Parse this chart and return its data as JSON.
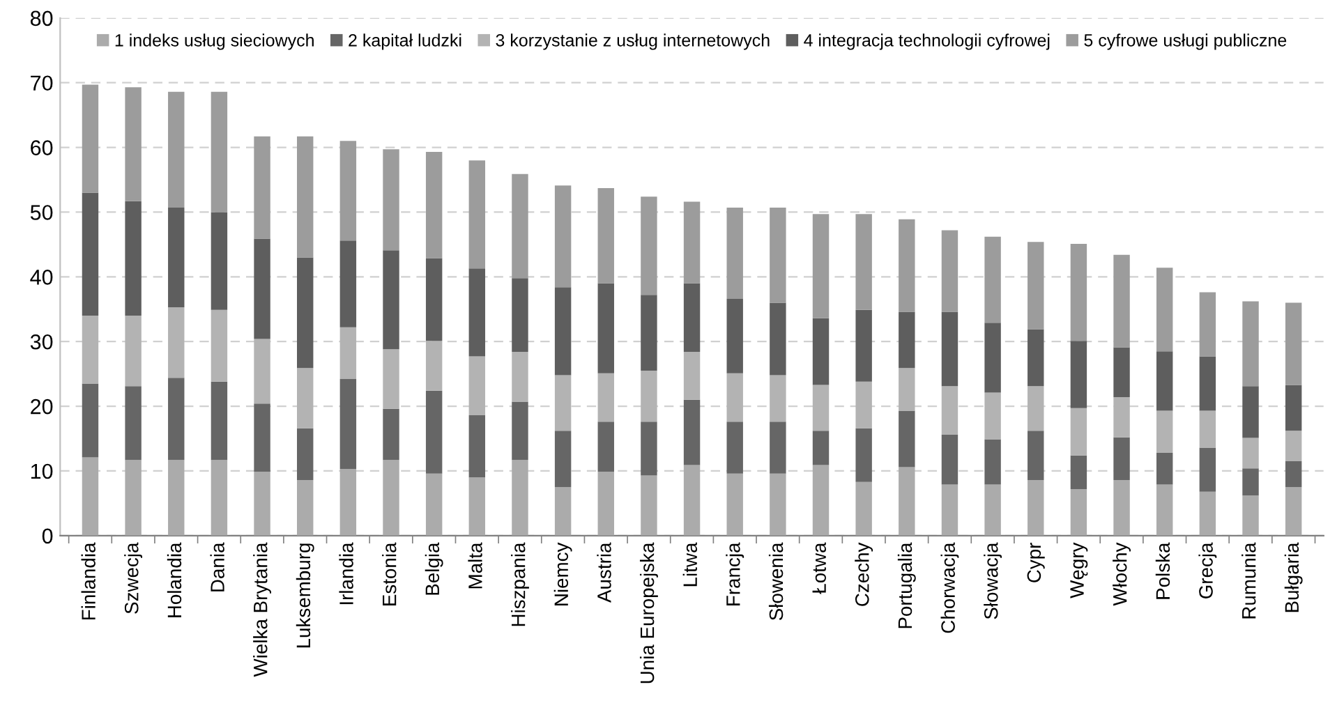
{
  "chart_data": {
    "type": "bar",
    "stacked": true,
    "categories": [
      "Finlandia",
      "Szwecja",
      "Holandia",
      "Dania",
      "Wielka Brytania",
      "Luksemburg",
      "Irlandia",
      "Estonia",
      "Belgia",
      "Malta",
      "Hiszpania",
      "Niemcy",
      "Austria",
      "Unia Europejska",
      "Litwa",
      "Francja",
      "Słowenia",
      "Łotwa",
      "Czechy",
      "Portugalia",
      "Chorwacja",
      "Słowacja",
      "Cypr",
      "Węgry",
      "Włochy",
      "Polska",
      "Grecja",
      "Rumunia",
      "Bułgaria"
    ],
    "series": [
      {
        "name": "1 indeks usług sieciowych",
        "color": "#ababab",
        "values": [
          12.1,
          11.7,
          11.7,
          11.7,
          9.9,
          8.6,
          10.3,
          11.7,
          9.6,
          9.0,
          11.7,
          7.5,
          9.9,
          9.3,
          10.9,
          9.6,
          9.6,
          10.9,
          8.3,
          10.6,
          7.9,
          7.9,
          8.6,
          7.2,
          8.6,
          7.9,
          6.8,
          6.2,
          7.5
        ]
      },
      {
        "name": "2 kapitał ludzki",
        "color": "#666666",
        "values": [
          11.4,
          11.4,
          12.7,
          12.1,
          10.5,
          8.0,
          13.9,
          7.9,
          12.8,
          9.6,
          9.0,
          8.7,
          7.7,
          8.3,
          10.1,
          8.0,
          8.0,
          5.3,
          8.3,
          8.7,
          7.7,
          7.0,
          7.6,
          5.2,
          6.6,
          4.9,
          6.8,
          4.2,
          4.0
        ]
      },
      {
        "name": "3 korzystanie z usług internetowych",
        "color": "#b3b3b3",
        "values": [
          10.5,
          10.9,
          10.9,
          11.1,
          10.0,
          9.3,
          8.0,
          9.2,
          7.7,
          9.1,
          7.7,
          8.6,
          7.5,
          7.9,
          7.4,
          7.5,
          7.2,
          7.1,
          7.2,
          6.6,
          7.5,
          7.2,
          6.9,
          7.3,
          6.2,
          6.5,
          5.7,
          4.7,
          4.7
        ]
      },
      {
        "name": "4 integracja technologii cyfrowej",
        "color": "#5e5e5e",
        "values": [
          19.0,
          17.7,
          15.4,
          15.1,
          15.5,
          17.1,
          13.4,
          15.3,
          12.8,
          13.6,
          11.4,
          13.6,
          13.9,
          11.7,
          10.6,
          11.5,
          11.2,
          10.3,
          11.1,
          8.7,
          11.5,
          10.8,
          8.8,
          10.4,
          7.7,
          9.2,
          8.4,
          8.0,
          7.1
        ]
      },
      {
        "name": "5 cyfrowe usługi publiczne",
        "color": "#9c9c9c",
        "values": [
          16.7,
          17.6,
          17.9,
          18.6,
          15.8,
          18.7,
          15.4,
          15.6,
          16.4,
          16.7,
          16.1,
          15.7,
          14.7,
          15.2,
          12.6,
          14.1,
          14.7,
          16.1,
          14.8,
          14.3,
          12.6,
          13.3,
          13.5,
          15.0,
          14.3,
          12.9,
          9.9,
          13.1,
          12.7
        ]
      }
    ],
    "ylim": [
      0,
      80
    ],
    "yticks": [
      0,
      10,
      20,
      30,
      40,
      50,
      60,
      70,
      80
    ],
    "grid": "y",
    "legend": "top"
  }
}
